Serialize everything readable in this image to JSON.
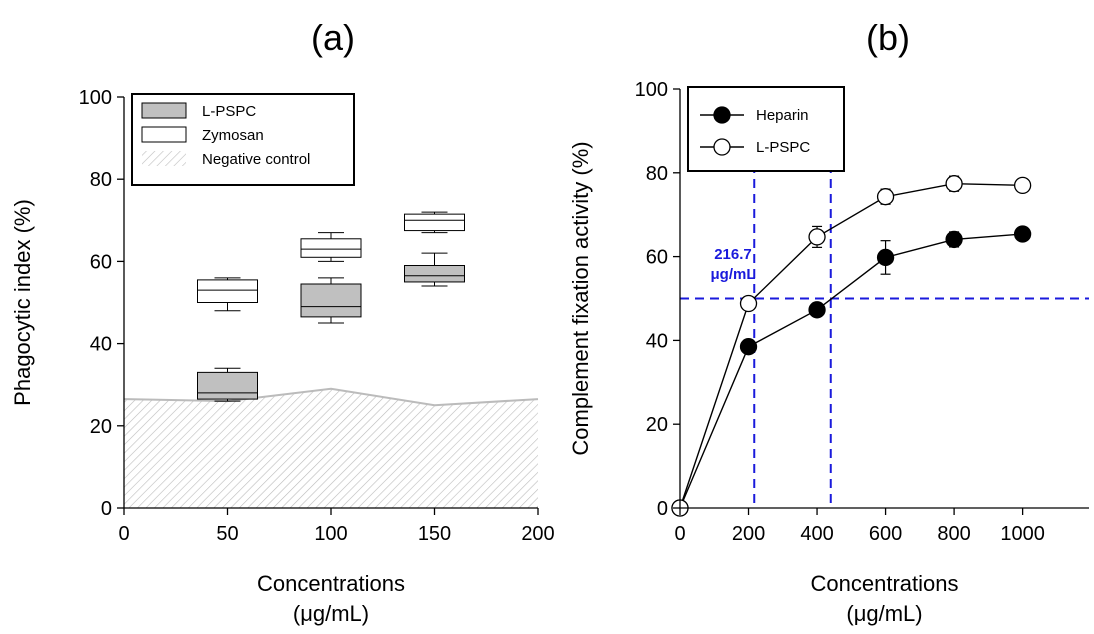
{
  "chart_data": [
    {
      "type": "box",
      "panel_label": "(a)",
      "xlabel": [
        "Concentrations",
        "(μg/mL)"
      ],
      "ylabel": "Phagocytic index (%)",
      "xlim": [
        0,
        200
      ],
      "ylim": [
        0,
        100
      ],
      "xticks": [
        0,
        50,
        100,
        150,
        200
      ],
      "yticks": [
        0,
        20,
        40,
        60,
        80,
        100
      ],
      "legend": {
        "position": "top-left",
        "entries": [
          {
            "label": "L-PSPC",
            "style": "gray-box"
          },
          {
            "label": "Zymosan",
            "style": "white-box"
          },
          {
            "label": "Negative control",
            "style": "hatched"
          }
        ]
      },
      "series": [
        {
          "name": "L-PSPC",
          "color": "#c0c0c0",
          "boxes": [
            {
              "x": 50,
              "min": 26,
              "q1": 26.5,
              "median": 28,
              "q3": 33,
              "max": 34
            },
            {
              "x": 100,
              "min": 45,
              "q1": 46.5,
              "median": 49,
              "q3": 54.5,
              "max": 56
            },
            {
              "x": 150,
              "min": 54,
              "q1": 55,
              "median": 56.5,
              "q3": 59,
              "max": 62
            }
          ]
        },
        {
          "name": "Zymosan",
          "color": "#ffffff",
          "boxes": [
            {
              "x": 50,
              "min": 48,
              "q1": 50,
              "median": 53,
              "q3": 55.5,
              "max": 56
            },
            {
              "x": 100,
              "min": 60,
              "q1": 61,
              "median": 63,
              "q3": 65.5,
              "max": 67
            },
            {
              "x": 150,
              "min": 67,
              "q1": 67.5,
              "median": 70,
              "q3": 71.5,
              "max": 72
            }
          ]
        },
        {
          "name": "Negative control",
          "color": "#bbbbbb",
          "area": {
            "x": [
              0,
              50,
              100,
              150,
              200
            ],
            "y": [
              26.5,
              26,
              29,
              25,
              26.5
            ]
          }
        }
      ]
    },
    {
      "type": "line",
      "panel_label": "(b)",
      "xlabel": [
        "Concentrations",
        "(μg/mL)"
      ],
      "ylabel": "Complement fixation activity (%)",
      "xlim": [
        0,
        1000
      ],
      "ylim": [
        0,
        100
      ],
      "xticks": [
        0,
        200,
        400,
        600,
        800,
        1000
      ],
      "yticks": [
        0,
        20,
        40,
        60,
        80,
        100
      ],
      "legend": {
        "position": "top-left",
        "entries": [
          {
            "label": "Heparin",
            "style": "filled-circle"
          },
          {
            "label": "L-PSPC",
            "style": "open-circle"
          }
        ]
      },
      "series": [
        {
          "name": "Heparin",
          "marker": "filled",
          "x": [
            0,
            200,
            400,
            600,
            800,
            1000
          ],
          "y": [
            0,
            38.5,
            47.3,
            59.8,
            64.1,
            65.4
          ],
          "err": [
            0,
            0.8,
            1.2,
            4,
            1.8,
            1
          ]
        },
        {
          "name": "L-PSPC",
          "marker": "open",
          "x": [
            0,
            200,
            400,
            600,
            800,
            1000
          ],
          "y": [
            0,
            48.8,
            64.7,
            74.3,
            77.4,
            77
          ],
          "err": [
            0,
            1,
            2.5,
            1.8,
            1.8,
            0.8
          ]
        }
      ],
      "reference_lines": {
        "color": "#1a1adc",
        "horizontal_y": 50,
        "vertical_x": [
          216.7,
          440
        ]
      },
      "annotation": {
        "line1": "216.7",
        "line2": "μg/mL"
      }
    }
  ]
}
